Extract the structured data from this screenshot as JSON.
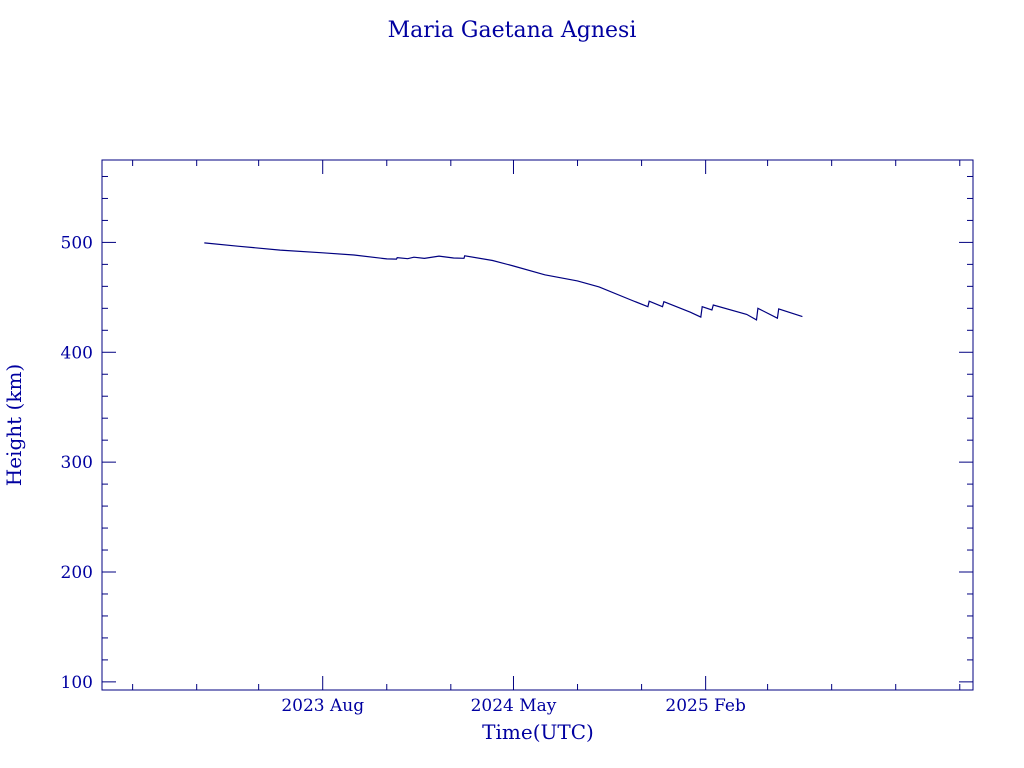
{
  "chart_data": {
    "type": "line",
    "title": "Maria Gaetana Agnesi",
    "xlabel": "Time(UTC)",
    "ylabel": "Height (km)",
    "xlim": [
      "2022-09-18",
      "2026-02-20"
    ],
    "ylim": [
      92.6,
      575
    ],
    "y_ticks": [
      100,
      200,
      300,
      400,
      500
    ],
    "y_tick_labels": [
      "100",
      "200",
      "300",
      "400",
      "500"
    ],
    "x_ticks": [
      "2023-08-01",
      "2024-05-01",
      "2025-02-01"
    ],
    "x_tick_labels": [
      "2023 Aug",
      "2024 May",
      "2025 Feb"
    ],
    "grid": false,
    "color": "#000080",
    "series": [
      {
        "values": [
          [
            "2023-02-12",
            499.5
          ],
          [
            "2023-04-01",
            496.5
          ],
          [
            "2023-06-01",
            493.0
          ],
          [
            "2023-08-01",
            490.5
          ],
          [
            "2023-09-15",
            488.5
          ],
          [
            "2023-11-01",
            485.0
          ],
          [
            "2023-11-15",
            484.8
          ],
          [
            "2023-11-16",
            486.2
          ],
          [
            "2023-12-01",
            485.2
          ],
          [
            "2023-12-10",
            486.5
          ],
          [
            "2023-12-25",
            485.4
          ],
          [
            "2024-01-15",
            487.5
          ],
          [
            "2024-02-05",
            485.8
          ],
          [
            "2024-02-20",
            485.5
          ],
          [
            "2024-02-21",
            487.8
          ],
          [
            "2024-04-01",
            483.5
          ],
          [
            "2024-05-01",
            478.5
          ],
          [
            "2024-06-15",
            470.5
          ],
          [
            "2024-08-01",
            465.0
          ],
          [
            "2024-09-01",
            459.5
          ],
          [
            "2024-10-15",
            448.0
          ],
          [
            "2024-11-10",
            441.5
          ],
          [
            "2024-11-12",
            446.5
          ],
          [
            "2024-12-01",
            441.5
          ],
          [
            "2024-12-03",
            446.0
          ],
          [
            "2025-01-10",
            436.5
          ],
          [
            "2025-01-25",
            432.0
          ],
          [
            "2025-01-27",
            441.5
          ],
          [
            "2025-02-10",
            438.5
          ],
          [
            "2025-02-12",
            443.0
          ],
          [
            "2025-04-01",
            434.5
          ],
          [
            "2025-04-15",
            429.5
          ],
          [
            "2025-04-17",
            440.0
          ],
          [
            "2025-05-15",
            431.0
          ],
          [
            "2025-05-17",
            439.5
          ],
          [
            "2025-06-20",
            432.5
          ]
        ]
      }
    ]
  }
}
